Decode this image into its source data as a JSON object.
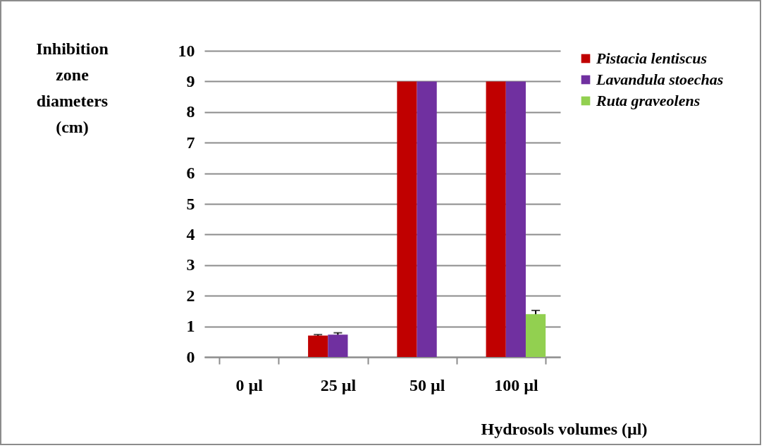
{
  "chart_data": {
    "type": "bar",
    "ylabel": "Inhibition zone diameters (cm)",
    "xlabel": "Hydrosols volumes (µl)",
    "categories": [
      "0 µl",
      "25 µl",
      "50 µl",
      "100 µl"
    ],
    "series": [
      {
        "name": "Pistacia lentiscus",
        "color": "#c00000",
        "values": [
          null,
          0.7,
          9,
          9
        ],
        "errors": [
          null,
          0.03,
          null,
          null
        ]
      },
      {
        "name": "Lavandula stoechas",
        "color": "#7030a0",
        "values": [
          null,
          0.73,
          9,
          9
        ],
        "errors": [
          null,
          0.06,
          null,
          null
        ]
      },
      {
        "name": "Ruta graveolens",
        "color": "#92d050",
        "values": [
          null,
          null,
          null,
          1.4
        ],
        "errors": [
          null,
          null,
          null,
          0.12
        ]
      }
    ],
    "ylim": [
      0,
      10
    ],
    "yticks": [
      0,
      1,
      2,
      3,
      4,
      5,
      6,
      7,
      8,
      9,
      10
    ],
    "grid": "y",
    "legend": "top right"
  }
}
